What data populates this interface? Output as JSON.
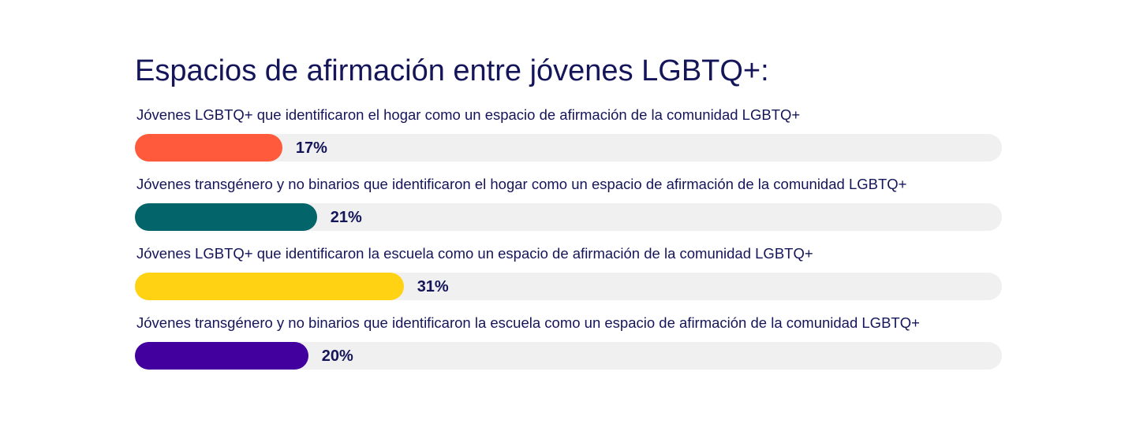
{
  "chart_data": {
    "type": "bar",
    "orientation": "horizontal",
    "title": "Espacios de afirmación entre jóvenes LGBTQ+:",
    "xlim": [
      0,
      100
    ],
    "grid": false,
    "legend": "none",
    "categories": [
      "Jóvenes LGBTQ+ que identificaron el hogar como un espacio de afirmación de la comunidad LGBTQ+",
      "Jóvenes transgénero y no binarios que identificaron el hogar como un espacio de afirmación de la comunidad LGBTQ+",
      "Jóvenes LGBTQ+ que identificaron la escuela como un espacio de afirmación de la comunidad LGBTQ+",
      "Jóvenes transgénero y no binarios que identificaron la escuela como un espacio de afirmación de la comunidad LGBTQ+"
    ],
    "values": [
      17,
      21,
      31,
      20
    ],
    "value_labels": [
      "17%",
      "21%",
      "31%",
      "20%"
    ],
    "colors": [
      "#ff5a3c",
      "#03646a",
      "#ffd214",
      "#42009e"
    ],
    "track_color": "#f0f0f0",
    "text_color": "#15155a"
  }
}
